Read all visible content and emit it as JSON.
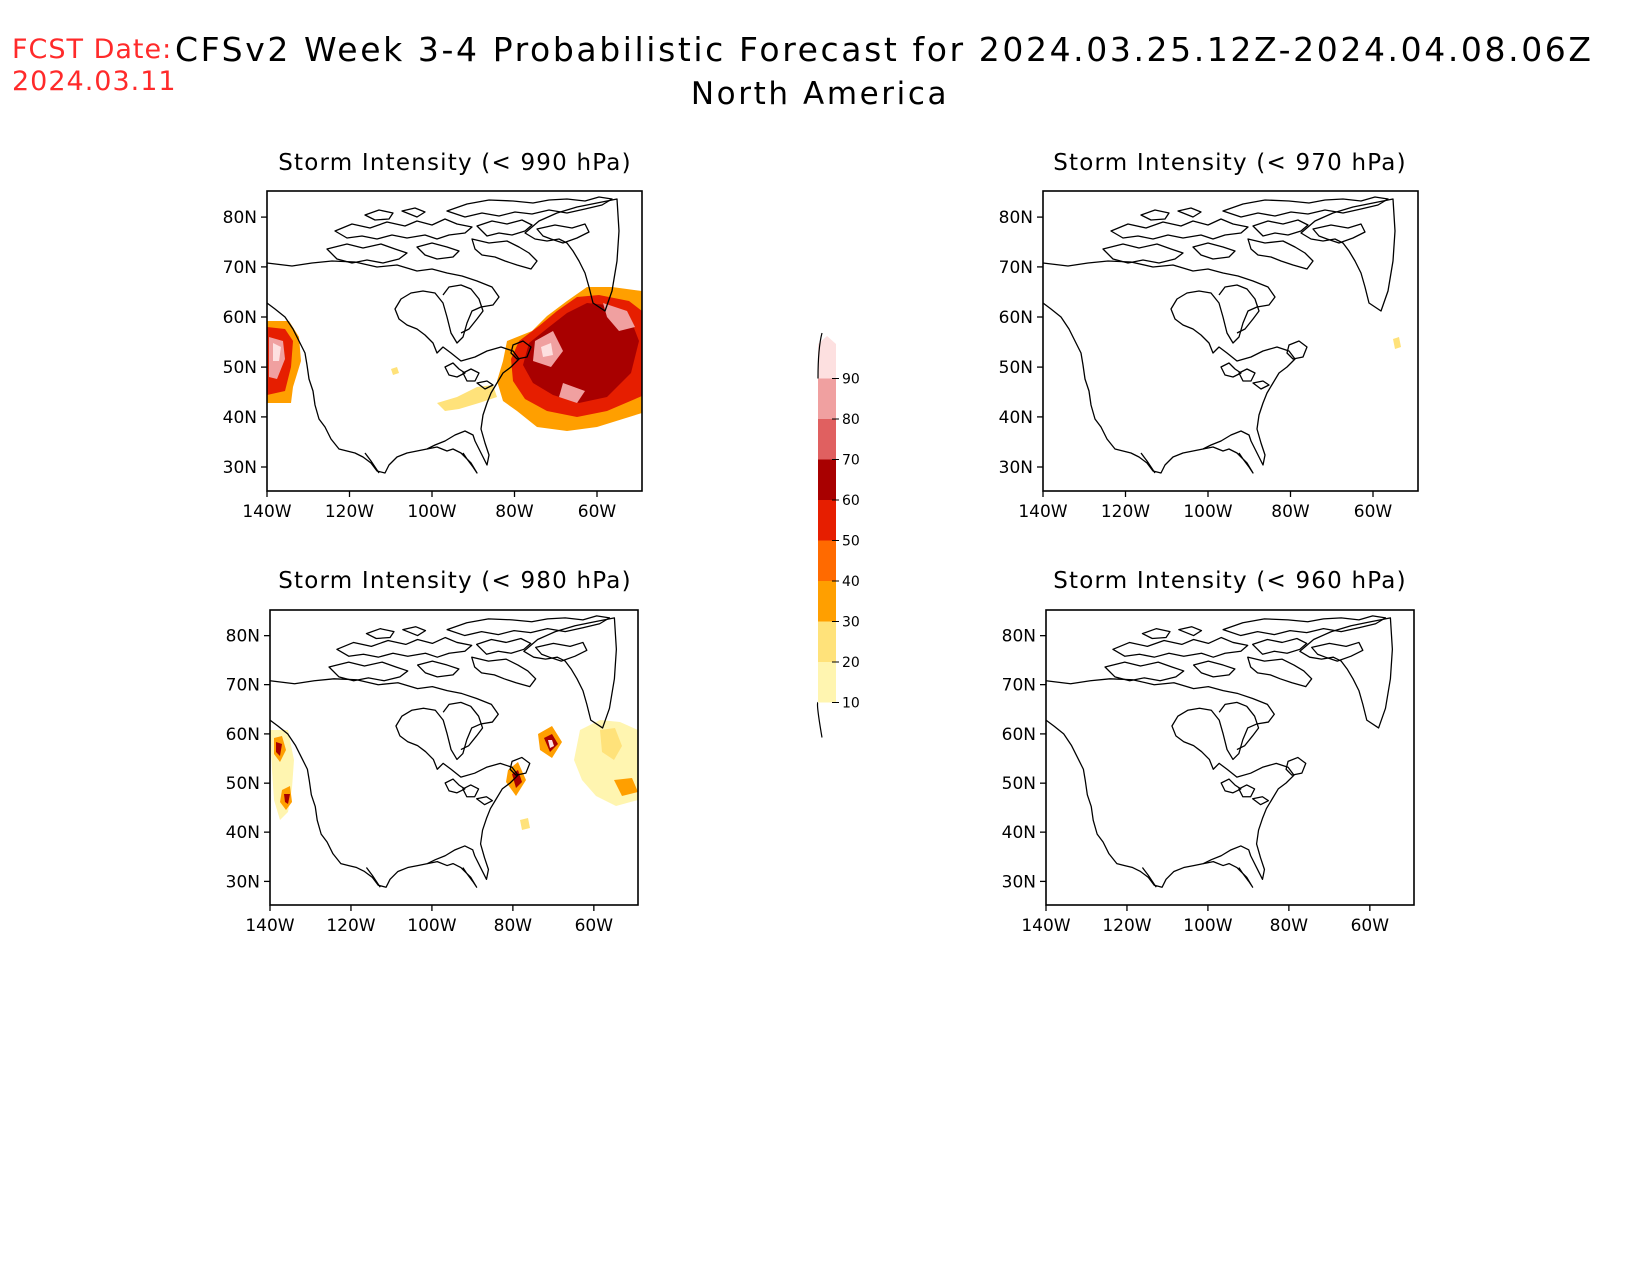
{
  "header": {
    "fcst_label": "FCST Date:",
    "fcst_date": "2024.03.11",
    "title": "CFSv2 Week 3-4 Probabilistic Forecast for 2024.03.25.12Z-2024.04.08.06Z",
    "region": "North America"
  },
  "panels": [
    {
      "id": "p990",
      "title": "Storm Intensity (< 990 hPa)"
    },
    {
      "id": "p970",
      "title": "Storm Intensity (< 970 hPa)"
    },
    {
      "id": "p980",
      "title": "Storm Intensity (< 980 hPa)"
    },
    {
      "id": "p960",
      "title": "Storm Intensity (< 960 hPa)"
    }
  ],
  "axes": {
    "lat_ticks": [
      "80N",
      "70N",
      "60N",
      "50N",
      "40N",
      "30N"
    ],
    "lon_ticks": [
      "140W",
      "120W",
      "100W",
      "80W",
      "60W"
    ]
  },
  "colorbar": {
    "levels": [
      "10",
      "20",
      "30",
      "40",
      "50",
      "60",
      "70",
      "80",
      "90"
    ],
    "colors": [
      "#fff5b0",
      "#ffe27a",
      "#ff9f00",
      "#ff6a00",
      "#e61e00",
      "#a80000",
      "#e06060",
      "#f0a0a0",
      "#fde0e0"
    ]
  }
}
